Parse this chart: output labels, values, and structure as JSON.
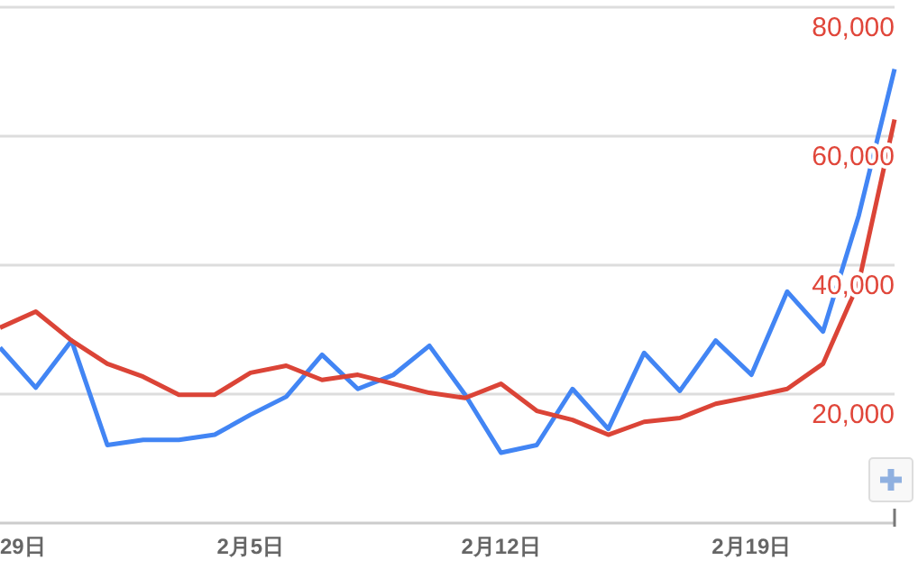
{
  "chart_data": {
    "type": "line",
    "x": [
      "--01-29",
      "--01-30",
      "--01-31",
      "--02-01",
      "--02-02",
      "--02-03",
      "--02-04",
      "--02-05",
      "--02-06",
      "--02-07",
      "--02-08",
      "--02-09",
      "--02-10",
      "--02-11",
      "--02-12",
      "--02-13",
      "--02-14",
      "--02-15",
      "--02-16",
      "--02-17",
      "--02-18",
      "--02-19",
      "--02-20",
      "--02-21",
      "--02-22",
      "--02-23"
    ],
    "series": [
      {
        "color": "#4285f4",
        "values": [
          27200,
          21000,
          28300,
          12100,
          12900,
          12900,
          13700,
          16800,
          19600,
          26100,
          20800,
          23000,
          27500,
          19900,
          10900,
          12100,
          20800,
          14600,
          26400,
          20500,
          28300,
          23000,
          35900,
          29700,
          47700,
          70400
        ]
      },
      {
        "color": "#db4437",
        "values": [
          30300,
          32800,
          28300,
          24700,
          22700,
          19900,
          19900,
          23300,
          24400,
          22200,
          23000,
          21600,
          20200,
          19400,
          21600,
          17400,
          16000,
          13700,
          15700,
          16300,
          18500,
          19600,
          20800,
          24700,
          37300,
          62600
        ]
      }
    ],
    "xlim": [
      "--01-29",
      "--02-23"
    ],
    "xticks": [
      {
        "value": "--01-29",
        "label": "29日"
      },
      {
        "value": "--02-05",
        "label": "2月5日"
      },
      {
        "value": "--02-12",
        "label": "2月12日"
      },
      {
        "value": "--02-19",
        "label": "2月19日"
      }
    ],
    "ylim": [
      0,
      80000
    ],
    "yticks": [
      {
        "value": 0,
        "label": null
      },
      {
        "value": 20000,
        "label": "20,000"
      },
      {
        "value": 40000,
        "label": "40,000"
      },
      {
        "value": 60000,
        "label": "60,000"
      },
      {
        "value": 80000,
        "label": "80,000"
      }
    ],
    "grid": "y",
    "marker": "none",
    "line_style": "solid"
  }
}
